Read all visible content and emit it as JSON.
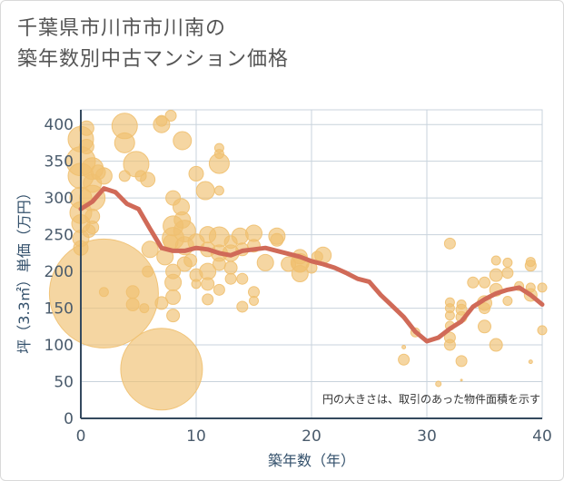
{
  "title_line1": "千葉県市川市市川南の",
  "title_line2": "築年数別中古マンション価格",
  "chart_data": {
    "type": "scatter",
    "xlabel": "築年数（年）",
    "ylabel": "坪（3.3㎡）単価（万円）",
    "note": "円の大きさは、取引のあった物件面積を示す",
    "xlim": [
      0,
      40
    ],
    "ylim": [
      0,
      420
    ],
    "xticks": [
      "0",
      "10",
      "20",
      "30",
      "40"
    ],
    "yticks": [
      "0",
      "50",
      "100",
      "150",
      "200",
      "250",
      "300",
      "350",
      "400"
    ],
    "colors": {
      "bubble": "#f0c070",
      "line": "#d06a58",
      "grid": "#c8d3dc"
    },
    "trend_line": {
      "x": [
        0,
        1,
        2,
        3,
        4,
        5,
        6,
        7,
        8,
        9,
        10,
        11,
        12,
        13,
        14,
        15,
        16,
        17,
        18,
        19,
        20,
        21,
        22,
        23,
        24,
        25,
        26,
        27,
        28,
        29,
        30,
        31,
        32,
        33,
        34,
        35,
        36,
        37,
        38,
        39,
        40
      ],
      "y": [
        285,
        295,
        313,
        308,
        292,
        285,
        258,
        232,
        228,
        228,
        232,
        230,
        225,
        222,
        228,
        230,
        232,
        228,
        224,
        220,
        214,
        210,
        205,
        198,
        190,
        186,
        168,
        153,
        138,
        118,
        105,
        110,
        122,
        132,
        152,
        162,
        170,
        175,
        178,
        168,
        155
      ]
    },
    "points": [
      {
        "x": 2,
        "y": 170,
        "s": 100
      },
      {
        "x": 7,
        "y": 67,
        "s": 100
      },
      {
        "x": 0,
        "y": 380,
        "s": 14
      },
      {
        "x": 0,
        "y": 350,
        "s": 16
      },
      {
        "x": 0,
        "y": 330,
        "s": 14
      },
      {
        "x": 0,
        "y": 300,
        "s": 12
      },
      {
        "x": 0,
        "y": 280,
        "s": 12
      },
      {
        "x": 0,
        "y": 265,
        "s": 10
      },
      {
        "x": 0,
        "y": 245,
        "s": 9
      },
      {
        "x": 0,
        "y": 232,
        "s": 8
      },
      {
        "x": 0.5,
        "y": 395,
        "s": 8
      },
      {
        "x": 0.5,
        "y": 370,
        "s": 8
      },
      {
        "x": 1,
        "y": 340,
        "s": 12
      },
      {
        "x": 1,
        "y": 320,
        "s": 10
      },
      {
        "x": 1,
        "y": 300,
        "s": 14
      },
      {
        "x": 1,
        "y": 275,
        "s": 8
      },
      {
        "x": 1,
        "y": 260,
        "s": 7
      },
      {
        "x": 0.7,
        "y": 255,
        "s": 7
      },
      {
        "x": 1.5,
        "y": 335,
        "s": 8
      },
      {
        "x": 2,
        "y": 172,
        "s": 5
      },
      {
        "x": 2,
        "y": 330,
        "s": 9
      },
      {
        "x": 3.8,
        "y": 398,
        "s": 14
      },
      {
        "x": 3.8,
        "y": 375,
        "s": 11
      },
      {
        "x": 3.8,
        "y": 330,
        "s": 6
      },
      {
        "x": 4.8,
        "y": 346,
        "s": 14
      },
      {
        "x": 5.2,
        "y": 330,
        "s": 6
      },
      {
        "x": 5.8,
        "y": 325,
        "s": 8
      },
      {
        "x": 4.5,
        "y": 172,
        "s": 7
      },
      {
        "x": 4.5,
        "y": 155,
        "s": 7
      },
      {
        "x": 5.5,
        "y": 150,
        "s": 5
      },
      {
        "x": 6,
        "y": 230,
        "s": 9
      },
      {
        "x": 5.8,
        "y": 200,
        "s": 6
      },
      {
        "x": 7,
        "y": 400,
        "s": 9
      },
      {
        "x": 7,
        "y": 405,
        "s": 6
      },
      {
        "x": 7.8,
        "y": 412,
        "s": 6
      },
      {
        "x": 8.8,
        "y": 378,
        "s": 10
      },
      {
        "x": 7.3,
        "y": 220,
        "s": 9
      },
      {
        "x": 7.8,
        "y": 240,
        "s": 8
      },
      {
        "x": 8,
        "y": 300,
        "s": 8
      },
      {
        "x": 8,
        "y": 262,
        "s": 11
      },
      {
        "x": 8,
        "y": 245,
        "s": 12
      },
      {
        "x": 8,
        "y": 200,
        "s": 8
      },
      {
        "x": 8,
        "y": 185,
        "s": 9
      },
      {
        "x": 8,
        "y": 165,
        "s": 8
      },
      {
        "x": 8,
        "y": 140,
        "s": 7
      },
      {
        "x": 7,
        "y": 157,
        "s": 7
      },
      {
        "x": 8.7,
        "y": 288,
        "s": 9
      },
      {
        "x": 8.8,
        "y": 270,
        "s": 9
      },
      {
        "x": 9,
        "y": 255,
        "s": 12
      },
      {
        "x": 9,
        "y": 235,
        "s": 10
      },
      {
        "x": 9,
        "y": 210,
        "s": 8
      },
      {
        "x": 9.5,
        "y": 215,
        "s": 7
      },
      {
        "x": 10,
        "y": 333,
        "s": 8
      },
      {
        "x": 10,
        "y": 240,
        "s": 9
      },
      {
        "x": 10,
        "y": 195,
        "s": 7
      },
      {
        "x": 10,
        "y": 183,
        "s": 5
      },
      {
        "x": 10.8,
        "y": 310,
        "s": 10
      },
      {
        "x": 11,
        "y": 250,
        "s": 9
      },
      {
        "x": 11,
        "y": 230,
        "s": 8
      },
      {
        "x": 11,
        "y": 200,
        "s": 9
      },
      {
        "x": 11,
        "y": 183,
        "s": 7
      },
      {
        "x": 11,
        "y": 162,
        "s": 6
      },
      {
        "x": 12,
        "y": 368,
        "s": 5
      },
      {
        "x": 12,
        "y": 360,
        "s": 5
      },
      {
        "x": 12,
        "y": 347,
        "s": 11
      },
      {
        "x": 12,
        "y": 310,
        "s": 5
      },
      {
        "x": 12,
        "y": 247,
        "s": 11
      },
      {
        "x": 12,
        "y": 225,
        "s": 9
      },
      {
        "x": 12,
        "y": 210,
        "s": 7
      },
      {
        "x": 12,
        "y": 175,
        "s": 6
      },
      {
        "x": 13,
        "y": 240,
        "s": 7
      },
      {
        "x": 13,
        "y": 225,
        "s": 9
      },
      {
        "x": 13,
        "y": 205,
        "s": 7
      },
      {
        "x": 13,
        "y": 190,
        "s": 6
      },
      {
        "x": 13.8,
        "y": 248,
        "s": 9
      },
      {
        "x": 14,
        "y": 230,
        "s": 7
      },
      {
        "x": 14,
        "y": 190,
        "s": 6
      },
      {
        "x": 14,
        "y": 152,
        "s": 6
      },
      {
        "x": 15,
        "y": 252,
        "s": 9
      },
      {
        "x": 15,
        "y": 235,
        "s": 7
      },
      {
        "x": 15,
        "y": 172,
        "s": 6
      },
      {
        "x": 15,
        "y": 160,
        "s": 5
      },
      {
        "x": 16,
        "y": 212,
        "s": 9
      },
      {
        "x": 17,
        "y": 248,
        "s": 9
      },
      {
        "x": 17,
        "y": 243,
        "s": 7
      },
      {
        "x": 18,
        "y": 210,
        "s": 8
      },
      {
        "x": 19,
        "y": 220,
        "s": 8
      },
      {
        "x": 19,
        "y": 210,
        "s": 9
      },
      {
        "x": 19,
        "y": 197,
        "s": 9
      },
      {
        "x": 19,
        "y": 212,
        "s": 10
      },
      {
        "x": 20,
        "y": 205,
        "s": 6
      },
      {
        "x": 20.5,
        "y": 220,
        "s": 6
      },
      {
        "x": 21,
        "y": 222,
        "s": 9
      },
      {
        "x": 28,
        "y": 97,
        "s": 2
      },
      {
        "x": 28,
        "y": 80,
        "s": 6
      },
      {
        "x": 29,
        "y": 117,
        "s": 5
      },
      {
        "x": 31,
        "y": 47,
        "s": 3
      },
      {
        "x": 32,
        "y": 238,
        "s": 6
      },
      {
        "x": 32,
        "y": 158,
        "s": 5
      },
      {
        "x": 32,
        "y": 150,
        "s": 5
      },
      {
        "x": 32,
        "y": 140,
        "s": 5
      },
      {
        "x": 32,
        "y": 126,
        "s": 5
      },
      {
        "x": 32,
        "y": 110,
        "s": 6
      },
      {
        "x": 32,
        "y": 100,
        "s": 6
      },
      {
        "x": 33,
        "y": 155,
        "s": 5
      },
      {
        "x": 33,
        "y": 148,
        "s": 6
      },
      {
        "x": 33,
        "y": 138,
        "s": 6
      },
      {
        "x": 33,
        "y": 78,
        "s": 6
      },
      {
        "x": 33,
        "y": 52,
        "s": 1
      },
      {
        "x": 34,
        "y": 185,
        "s": 6
      },
      {
        "x": 35,
        "y": 157,
        "s": 8
      },
      {
        "x": 35,
        "y": 150,
        "s": 6
      },
      {
        "x": 35,
        "y": 125,
        "s": 7
      },
      {
        "x": 35,
        "y": 185,
        "s": 6
      },
      {
        "x": 36,
        "y": 215,
        "s": 5
      },
      {
        "x": 36,
        "y": 195,
        "s": 7
      },
      {
        "x": 36,
        "y": 175,
        "s": 7
      },
      {
        "x": 36,
        "y": 100,
        "s": 7
      },
      {
        "x": 37,
        "y": 212,
        "s": 5
      },
      {
        "x": 37,
        "y": 198,
        "s": 6
      },
      {
        "x": 37,
        "y": 160,
        "s": 5
      },
      {
        "x": 38,
        "y": 180,
        "s": 5
      },
      {
        "x": 39,
        "y": 213,
        "s": 5
      },
      {
        "x": 39,
        "y": 208,
        "s": 6
      },
      {
        "x": 39,
        "y": 178,
        "s": 5
      },
      {
        "x": 39,
        "y": 168,
        "s": 7
      },
      {
        "x": 39,
        "y": 77,
        "s": 2
      },
      {
        "x": 40,
        "y": 178,
        "s": 5
      },
      {
        "x": 40,
        "y": 120,
        "s": 5
      }
    ]
  }
}
